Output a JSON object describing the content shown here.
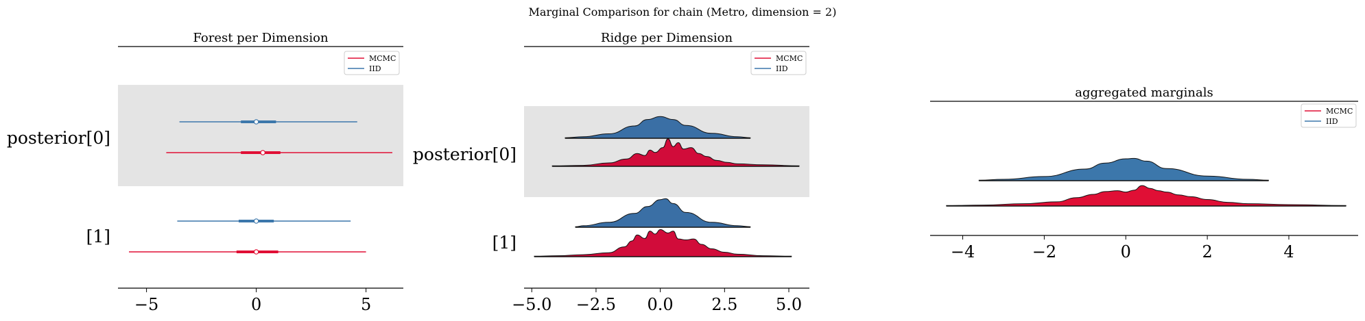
{
  "figure": {
    "suptitle": "Marginal Comparison for chain (Metro, dimension = 2)"
  },
  "colors": {
    "mcmc": "#e00f35",
    "iid": "#3c77ab",
    "band": "#e4e4e4",
    "mcmc_fill": "#d10c3a",
    "iid_fill": "#3a6fa5"
  },
  "chart_data": [
    {
      "type": "forest",
      "title": "Forest per Dimension",
      "xlim": [
        -6.3,
        6.7
      ],
      "xticks": [
        -5,
        0,
        5
      ],
      "xtick_labels": [
        "−5",
        "0",
        "5"
      ],
      "rows": [
        "posterior[0]",
        "[1]"
      ],
      "legend": {
        "placement": "top-right",
        "entries": [
          "MCMC",
          "IID"
        ]
      },
      "series": [
        {
          "name": "MCMC",
          "rows": [
            {
              "row": "posterior[0]",
              "hdi": [
                -4.1,
                6.2
              ],
              "iqr": [
                -0.7,
                1.1
              ],
              "point": 0.3
            },
            {
              "row": "[1]",
              "hdi": [
                -5.8,
                5.0
              ],
              "iqr": [
                -0.9,
                1.0
              ],
              "point": 0.0
            }
          ]
        },
        {
          "name": "IID",
          "rows": [
            {
              "row": "posterior[0]",
              "hdi": [
                -3.5,
                4.6
              ],
              "iqr": [
                -0.7,
                0.9
              ],
              "point": 0.0
            },
            {
              "row": "[1]",
              "hdi": [
                -3.6,
                4.3
              ],
              "iqr": [
                -0.8,
                0.8
              ],
              "point": 0.0
            }
          ]
        }
      ]
    },
    {
      "type": "ridge",
      "title": "Ridge per Dimension",
      "xlim": [
        -5.3,
        5.8
      ],
      "xticks": [
        -5,
        -2.5,
        0,
        2.5,
        5
      ],
      "xtick_labels": [
        "−5.0",
        "−2.5",
        "0.0",
        "2.5",
        "5.0"
      ],
      "rows": [
        "posterior[0]",
        "[1]"
      ],
      "legend": {
        "placement": "top-right",
        "entries": [
          "MCMC",
          "IID"
        ]
      },
      "series": [
        {
          "name": "IID",
          "rows": [
            {
              "row": "posterior[0]",
              "x": [
                -3.7,
                -3.0,
                -2.0,
                -1.0,
                -0.5,
                0.0,
                0.5,
                1.0,
                2.0,
                3.0,
                3.5
              ],
              "density": [
                0.01,
                0.03,
                0.09,
                0.25,
                0.38,
                0.44,
                0.38,
                0.26,
                0.1,
                0.03,
                0.01
              ]
            },
            {
              "row": "[1]",
              "x": [
                -3.3,
                -3.0,
                -2.0,
                -1.0,
                -0.5,
                0.0,
                0.2,
                0.5,
                1.0,
                2.0,
                3.0,
                3.5
              ],
              "density": [
                0.01,
                0.03,
                0.1,
                0.28,
                0.42,
                0.56,
                0.58,
                0.48,
                0.3,
                0.1,
                0.03,
                0.01
              ]
            }
          ]
        },
        {
          "name": "MCMC",
          "rows": [
            {
              "row": "posterior[0]",
              "x": [
                -4.2,
                -3.0,
                -2.0,
                -1.3,
                -0.9,
                -0.6,
                -0.4,
                -0.2,
                0.1,
                0.3,
                0.5,
                0.7,
                0.9,
                1.2,
                1.5,
                1.8,
                2.2,
                2.6,
                3.0,
                4.0,
                5.4
              ],
              "density": [
                0.01,
                0.02,
                0.07,
                0.15,
                0.26,
                0.22,
                0.33,
                0.28,
                0.38,
                0.56,
                0.4,
                0.48,
                0.35,
                0.38,
                0.26,
                0.2,
                0.12,
                0.08,
                0.05,
                0.03,
                0.01
              ]
            },
            {
              "row": "[1]",
              "x": [
                -4.9,
                -4.0,
                -3.0,
                -2.0,
                -1.4,
                -1.1,
                -0.9,
                -0.6,
                -0.4,
                -0.2,
                0.0,
                0.3,
                0.5,
                0.7,
                1.0,
                1.3,
                1.6,
                2.0,
                2.5,
                3.0,
                4.0,
                5.1
              ],
              "density": [
                0.01,
                0.02,
                0.04,
                0.08,
                0.2,
                0.32,
                0.44,
                0.37,
                0.52,
                0.46,
                0.55,
                0.48,
                0.52,
                0.36,
                0.34,
                0.36,
                0.25,
                0.16,
                0.09,
                0.05,
                0.02,
                0.01
              ]
            }
          ]
        }
      ]
    },
    {
      "type": "ridge",
      "title": "aggregated marginals",
      "xlim": [
        -4.8,
        5.7
      ],
      "xticks": [
        -4,
        -2,
        0,
        2,
        4
      ],
      "xtick_labels": [
        "−4",
        "−2",
        "0",
        "2",
        "4"
      ],
      "legend": {
        "placement": "top-right",
        "entries": [
          "MCMC",
          "IID"
        ]
      },
      "series": [
        {
          "name": "IID",
          "x": [
            -3.6,
            -3.0,
            -2.0,
            -1.0,
            -0.5,
            0.0,
            0.2,
            0.5,
            1.0,
            2.0,
            3.0,
            3.5
          ],
          "density": [
            0.01,
            0.03,
            0.09,
            0.25,
            0.38,
            0.47,
            0.48,
            0.42,
            0.26,
            0.1,
            0.03,
            0.01
          ]
        },
        {
          "name": "MCMC",
          "x": [
            -4.4,
            -3.5,
            -2.5,
            -1.7,
            -1.2,
            -0.8,
            -0.5,
            -0.2,
            0.0,
            0.2,
            0.4,
            0.6,
            0.8,
            1.0,
            1.3,
            1.6,
            2.0,
            2.5,
            3.0,
            4.0,
            5.4
          ],
          "density": [
            0.01,
            0.02,
            0.05,
            0.09,
            0.18,
            0.25,
            0.31,
            0.33,
            0.3,
            0.34,
            0.44,
            0.38,
            0.33,
            0.3,
            0.24,
            0.2,
            0.14,
            0.08,
            0.05,
            0.03,
            0.01
          ]
        }
      ]
    }
  ]
}
